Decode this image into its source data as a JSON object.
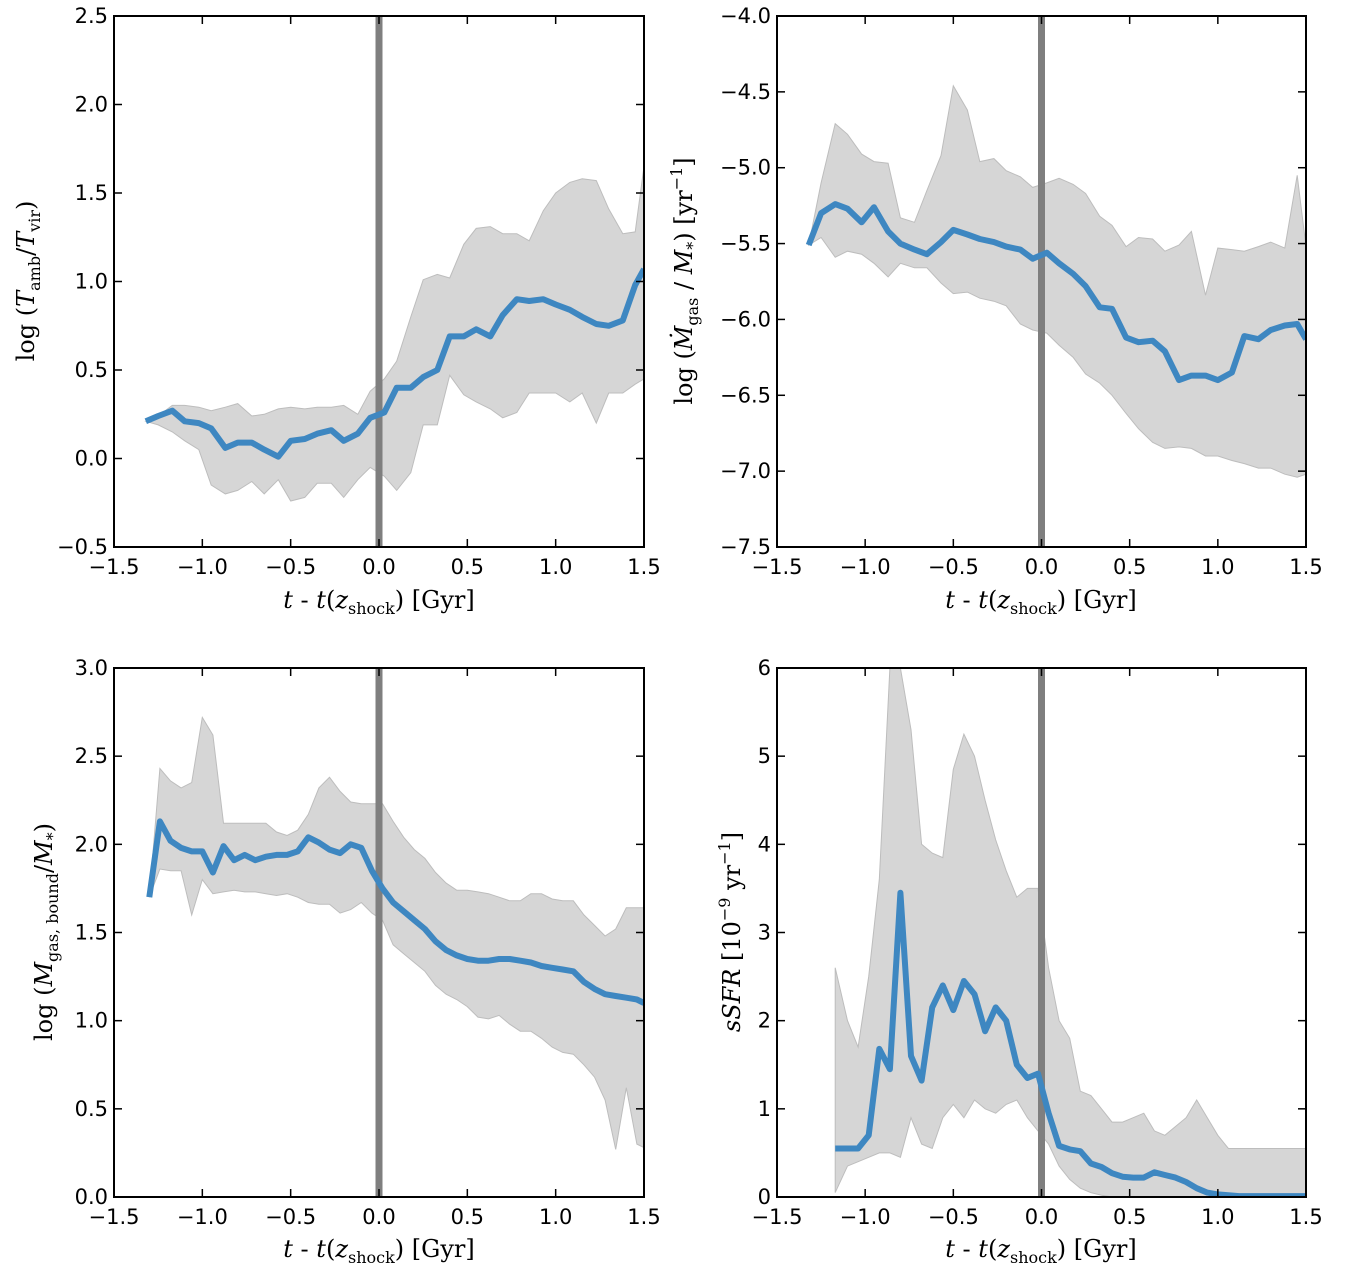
{
  "colors": {
    "line": "#3e87c1",
    "band": "#d6d6d6",
    "band_edge": "#bdbdbd",
    "vline": "#7f7f7f"
  },
  "chart_data": [
    {
      "type": "line",
      "xlabel": "t - t(z_shock) [Gyr]",
      "ylabel": "log (T_amb/T_vir)",
      "xlim": [
        -1.5,
        1.5
      ],
      "ylim": [
        -0.5,
        2.5
      ],
      "xticks": [
        -1.5,
        -1.0,
        -0.5,
        0.0,
        0.5,
        1.0,
        1.5
      ],
      "yticks": [
        -0.5,
        0.0,
        0.5,
        1.0,
        1.5,
        2.0,
        2.5
      ],
      "vline": 0.0,
      "x": [
        -1.32,
        -1.25,
        -1.17,
        -1.1,
        -1.02,
        -0.95,
        -0.87,
        -0.8,
        -0.72,
        -0.65,
        -0.57,
        -0.5,
        -0.42,
        -0.35,
        -0.27,
        -0.2,
        -0.12,
        -0.05,
        0.03,
        0.1,
        0.18,
        0.25,
        0.33,
        0.4,
        0.48,
        0.55,
        0.63,
        0.7,
        0.78,
        0.85,
        0.93,
        1.0,
        1.08,
        1.15,
        1.23,
        1.3,
        1.38,
        1.45,
        1.5
      ],
      "y": [
        0.21,
        0.24,
        0.27,
        0.21,
        0.2,
        0.17,
        0.06,
        0.09,
        0.09,
        0.05,
        0.01,
        0.1,
        0.11,
        0.14,
        0.16,
        0.1,
        0.14,
        0.23,
        0.26,
        0.4,
        0.4,
        0.46,
        0.5,
        0.69,
        0.69,
        0.73,
        0.69,
        0.81,
        0.9,
        0.89,
        0.9,
        0.87,
        0.84,
        0.8,
        0.76,
        0.75,
        0.78,
        0.98,
        1.07
      ],
      "upper": [
        0.21,
        0.24,
        0.3,
        0.3,
        0.29,
        0.27,
        0.29,
        0.31,
        0.24,
        0.25,
        0.28,
        0.29,
        0.28,
        0.29,
        0.29,
        0.3,
        0.25,
        0.38,
        0.45,
        0.55,
        0.8,
        1.01,
        1.04,
        1.02,
        1.21,
        1.3,
        1.31,
        1.27,
        1.27,
        1.23,
        1.4,
        1.5,
        1.56,
        1.58,
        1.57,
        1.41,
        1.27,
        1.28,
        1.65
      ],
      "lower": [
        0.21,
        0.19,
        0.15,
        0.1,
        0.05,
        -0.15,
        -0.2,
        -0.18,
        -0.13,
        -0.2,
        -0.12,
        -0.24,
        -0.22,
        -0.14,
        -0.14,
        -0.22,
        -0.12,
        -0.05,
        -0.1,
        -0.18,
        -0.08,
        0.19,
        0.19,
        0.47,
        0.36,
        0.32,
        0.28,
        0.23,
        0.26,
        0.37,
        0.37,
        0.37,
        0.32,
        0.37,
        0.2,
        0.37,
        0.37,
        0.42,
        0.45
      ]
    },
    {
      "type": "line",
      "xlabel": "t - t(z_shock) [Gyr]",
      "ylabel": "log (Ṁ_gas / M_*) [yr^-1]",
      "xlim": [
        -1.5,
        1.5
      ],
      "ylim": [
        -7.5,
        -4.0
      ],
      "xticks": [
        -1.5,
        -1.0,
        -0.5,
        0.0,
        0.5,
        1.0,
        1.5
      ],
      "yticks": [
        -7.5,
        -7.0,
        -6.5,
        -6.0,
        -5.5,
        -5.0,
        -4.5,
        -4.0
      ],
      "vline": 0.0,
      "x": [
        -1.32,
        -1.25,
        -1.17,
        -1.1,
        -1.02,
        -0.95,
        -0.87,
        -0.8,
        -0.72,
        -0.65,
        -0.57,
        -0.5,
        -0.42,
        -0.35,
        -0.27,
        -0.2,
        -0.12,
        -0.05,
        0.03,
        0.1,
        0.18,
        0.25,
        0.33,
        0.4,
        0.48,
        0.55,
        0.63,
        0.7,
        0.78,
        0.85,
        0.93,
        1.0,
        1.08,
        1.15,
        1.23,
        1.3,
        1.38,
        1.45,
        1.5
      ],
      "y": [
        -5.51,
        -5.3,
        -5.24,
        -5.27,
        -5.36,
        -5.26,
        -5.42,
        -5.5,
        -5.54,
        -5.57,
        -5.49,
        -5.41,
        -5.44,
        -5.47,
        -5.49,
        -5.52,
        -5.54,
        -5.6,
        -5.56,
        -5.63,
        -5.7,
        -5.78,
        -5.92,
        -5.93,
        -6.12,
        -6.15,
        -6.14,
        -6.21,
        -6.4,
        -6.37,
        -6.37,
        -6.4,
        -6.35,
        -6.11,
        -6.13,
        -6.07,
        -6.04,
        -6.03,
        -6.13
      ],
      "upper": [
        -5.51,
        -5.1,
        -4.71,
        -4.78,
        -4.91,
        -4.96,
        -4.97,
        -5.33,
        -5.36,
        -5.15,
        -4.92,
        -4.46,
        -4.62,
        -4.96,
        -4.94,
        -5.02,
        -5.06,
        -5.13,
        -5.1,
        -5.07,
        -5.11,
        -5.17,
        -5.32,
        -5.38,
        -5.52,
        -5.46,
        -5.47,
        -5.55,
        -5.51,
        -5.42,
        -5.84,
        -5.53,
        -5.54,
        -5.55,
        -5.52,
        -5.49,
        -5.53,
        -5.05,
        -5.52
      ],
      "lower": [
        -5.51,
        -5.46,
        -5.59,
        -5.55,
        -5.57,
        -5.63,
        -5.72,
        -5.63,
        -5.66,
        -5.66,
        -5.76,
        -5.83,
        -5.82,
        -5.86,
        -5.88,
        -5.91,
        -6.03,
        -6.07,
        -6.09,
        -6.17,
        -6.25,
        -6.36,
        -6.42,
        -6.5,
        -6.62,
        -6.72,
        -6.81,
        -6.85,
        -6.84,
        -6.85,
        -6.9,
        -6.9,
        -6.93,
        -6.95,
        -6.98,
        -6.98,
        -7.02,
        -7.04,
        -7.02
      ]
    },
    {
      "type": "line",
      "xlabel": "t - t(z_shock) [Gyr]",
      "ylabel": "log (M_gas,bound/M_*)",
      "xlim": [
        -1.5,
        1.5
      ],
      "ylim": [
        0.0,
        3.0
      ],
      "xticks": [
        -1.5,
        -1.0,
        -0.5,
        0.0,
        0.5,
        1.0,
        1.5
      ],
      "yticks": [
        0.0,
        0.5,
        1.0,
        1.5,
        2.0,
        2.5,
        3.0
      ],
      "vline": 0.0,
      "x": [
        -1.3,
        -1.24,
        -1.18,
        -1.12,
        -1.06,
        -1.0,
        -0.94,
        -0.88,
        -0.82,
        -0.76,
        -0.7,
        -0.64,
        -0.58,
        -0.52,
        -0.46,
        -0.4,
        -0.34,
        -0.28,
        -0.22,
        -0.16,
        -0.1,
        -0.04,
        0.02,
        0.08,
        0.14,
        0.2,
        0.26,
        0.32,
        0.38,
        0.44,
        0.5,
        0.56,
        0.62,
        0.68,
        0.74,
        0.8,
        0.86,
        0.92,
        0.98,
        1.04,
        1.1,
        1.16,
        1.22,
        1.28,
        1.34,
        1.4,
        1.46,
        1.5
      ],
      "y": [
        1.7,
        2.13,
        2.02,
        1.98,
        1.96,
        1.96,
        1.84,
        1.99,
        1.91,
        1.94,
        1.91,
        1.93,
        1.94,
        1.94,
        1.96,
        2.04,
        2.01,
        1.97,
        1.95,
        2.0,
        1.98,
        1.85,
        1.75,
        1.67,
        1.62,
        1.57,
        1.52,
        1.45,
        1.4,
        1.37,
        1.35,
        1.34,
        1.34,
        1.35,
        1.35,
        1.34,
        1.33,
        1.31,
        1.3,
        1.29,
        1.28,
        1.22,
        1.18,
        1.15,
        1.14,
        1.13,
        1.12,
        1.1
      ],
      "upper": [
        1.7,
        2.43,
        2.36,
        2.32,
        2.35,
        2.72,
        2.62,
        2.12,
        2.12,
        2.12,
        2.12,
        2.12,
        2.07,
        2.05,
        2.08,
        2.17,
        2.32,
        2.38,
        2.3,
        2.24,
        2.23,
        2.23,
        2.23,
        2.13,
        2.04,
        1.97,
        1.92,
        1.84,
        1.78,
        1.74,
        1.74,
        1.73,
        1.72,
        1.7,
        1.68,
        1.68,
        1.72,
        1.72,
        1.69,
        1.68,
        1.68,
        1.6,
        1.54,
        1.48,
        1.52,
        1.64,
        1.64,
        1.64
      ],
      "lower": [
        1.7,
        1.86,
        1.85,
        1.85,
        1.6,
        1.8,
        1.72,
        1.73,
        1.74,
        1.73,
        1.73,
        1.72,
        1.71,
        1.72,
        1.7,
        1.67,
        1.66,
        1.66,
        1.61,
        1.63,
        1.67,
        1.61,
        1.57,
        1.43,
        1.38,
        1.33,
        1.28,
        1.2,
        1.15,
        1.12,
        1.08,
        1.02,
        1.01,
        1.03,
        0.98,
        0.94,
        0.94,
        0.9,
        0.85,
        0.82,
        0.81,
        0.75,
        0.68,
        0.55,
        0.27,
        0.62,
        0.3,
        0.28
      ]
    },
    {
      "type": "line",
      "xlabel": "t - t(z_shock) [Gyr]",
      "ylabel": "sSFR [10^-9 yr^-1]",
      "xlim": [
        -1.5,
        1.5
      ],
      "ylim": [
        0,
        6
      ],
      "xticks": [
        -1.5,
        -1.0,
        -0.5,
        0.0,
        0.5,
        1.0,
        1.5
      ],
      "yticks": [
        0,
        1,
        2,
        3,
        4,
        5,
        6
      ],
      "vline": 0.0,
      "x": [
        -1.17,
        -1.1,
        -1.04,
        -0.98,
        -0.92,
        -0.86,
        -0.8,
        -0.74,
        -0.68,
        -0.62,
        -0.56,
        -0.5,
        -0.44,
        -0.38,
        -0.32,
        -0.26,
        -0.2,
        -0.14,
        -0.08,
        -0.02,
        0.04,
        0.1,
        0.16,
        0.22,
        0.28,
        0.34,
        0.4,
        0.46,
        0.52,
        0.58,
        0.64,
        0.7,
        0.76,
        0.82,
        0.88,
        0.94,
        1.0,
        1.06,
        1.12,
        1.18,
        1.24,
        1.3,
        1.36,
        1.42,
        1.48,
        1.5
      ],
      "y": [
        0.55,
        0.55,
        0.55,
        0.7,
        1.68,
        1.45,
        3.45,
        1.6,
        1.32,
        2.15,
        2.4,
        2.12,
        2.45,
        2.3,
        1.88,
        2.15,
        2.0,
        1.5,
        1.35,
        1.4,
        0.95,
        0.58,
        0.54,
        0.52,
        0.38,
        0.34,
        0.27,
        0.23,
        0.22,
        0.22,
        0.28,
        0.25,
        0.22,
        0.17,
        0.1,
        0.05,
        0.03,
        0.02,
        0.01,
        0.01,
        0.01,
        0.01,
        0.01,
        0.01,
        0.01,
        0.01
      ],
      "upper": [
        2.6,
        2.0,
        1.7,
        2.5,
        3.6,
        6.0,
        6.0,
        5.3,
        4.0,
        3.9,
        3.85,
        4.85,
        5.25,
        5.0,
        4.5,
        4.05,
        3.7,
        3.4,
        3.5,
        3.5,
        2.6,
        2.0,
        1.8,
        1.2,
        1.15,
        1.0,
        0.85,
        0.85,
        0.9,
        0.95,
        0.75,
        0.7,
        0.8,
        0.9,
        1.1,
        0.9,
        0.7,
        0.55,
        0.55,
        0.55,
        0.55,
        0.55,
        0.55,
        0.55,
        0.55,
        0.55
      ],
      "lower": [
        0.05,
        0.35,
        0.4,
        0.45,
        0.5,
        0.5,
        0.45,
        0.9,
        0.6,
        0.55,
        0.9,
        1.05,
        0.9,
        1.1,
        1.0,
        0.95,
        1.05,
        1.1,
        0.9,
        0.75,
        0.6,
        0.35,
        0.2,
        0.1,
        0.05,
        0.02,
        0.0,
        0.0,
        0.0,
        0.0,
        0.0,
        0.0,
        0.0,
        0.0,
        0.0,
        0.0,
        0.0,
        0.0,
        0.0,
        0.0,
        0.0,
        0.0,
        0.0,
        0.0,
        0.0,
        0.0
      ]
    }
  ]
}
